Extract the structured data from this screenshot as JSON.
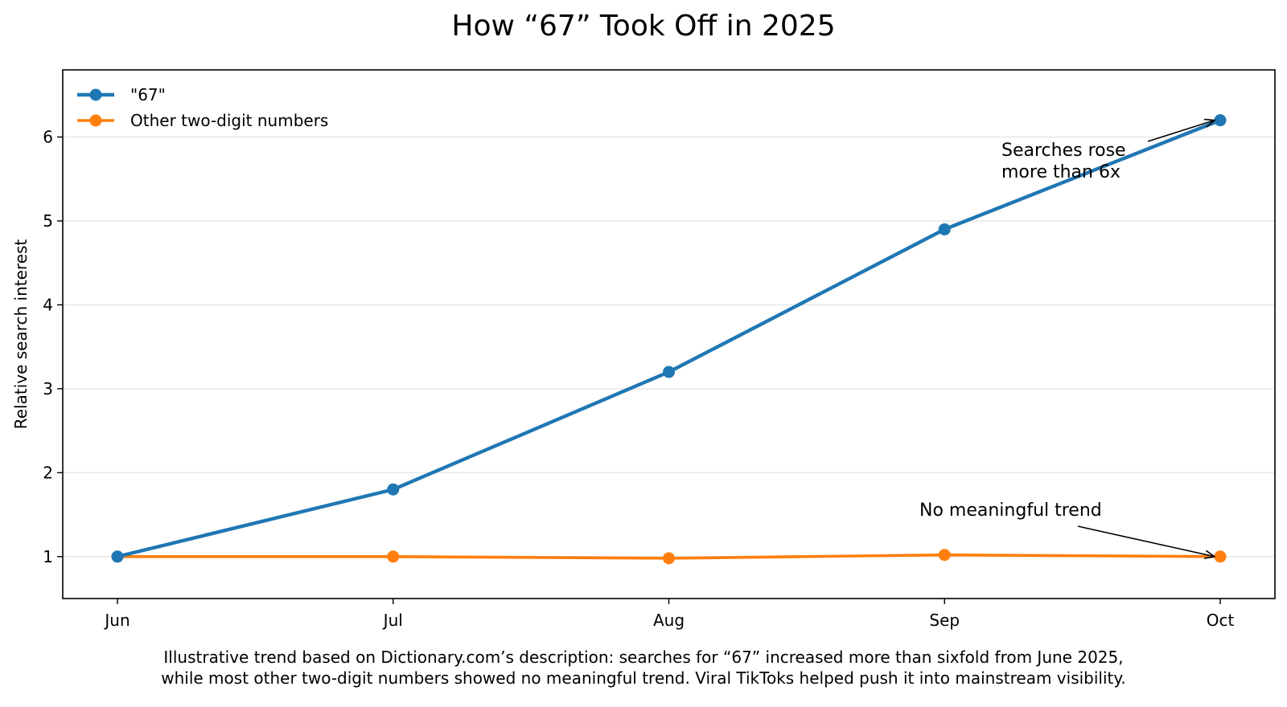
{
  "chart_data": {
    "type": "line",
    "title": "How “67” Took Off in 2025",
    "xlabel": "",
    "ylabel": "Relative search interest",
    "categories": [
      "Jun",
      "Jul",
      "Aug",
      "Sep",
      "Oct"
    ],
    "ylim": [
      0.5,
      6.8
    ],
    "yticks": [
      1,
      2,
      3,
      4,
      5,
      6
    ],
    "grid": "y-axis horizontal lines",
    "legend_position": "top-left",
    "series": [
      {
        "name": "\"67\"",
        "color": "#1f77b4",
        "values": [
          1.0,
          1.8,
          3.2,
          4.9,
          6.2
        ]
      },
      {
        "name": "Other two-digit numbers",
        "color": "#ff7f0e",
        "values": [
          1.0,
          1.0,
          0.98,
          1.02,
          1.0
        ]
      }
    ],
    "annotations": [
      {
        "text_lines": [
          "Searches rose",
          "more than 6x"
        ],
        "target_category": "Oct",
        "target_series": "\"67\""
      },
      {
        "text_lines": [
          "No meaningful trend"
        ],
        "target_category": "Oct",
        "target_series": "Other two-digit numbers"
      }
    ]
  },
  "caption_lines": [
    "Illustrative trend based on Dictionary.com’s description: searches for “67” increased more than sixfold from June 2025,",
    "while most other two-digit numbers showed no meaningful trend. Viral TikToks helped push it into mainstream visibility."
  ]
}
